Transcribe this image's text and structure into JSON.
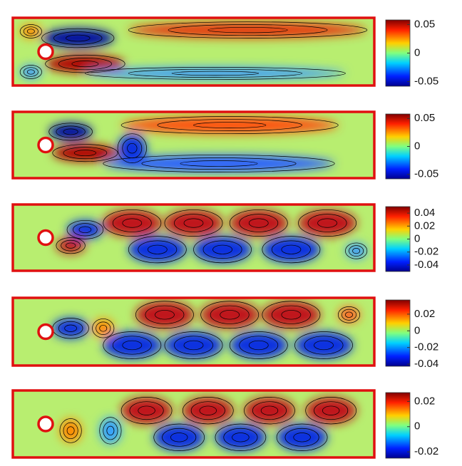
{
  "panels": [
    {
      "clim": [
        -0.058,
        0.058
      ],
      "ticks": [
        0.05,
        0,
        -0.05
      ]
    },
    {
      "clim": [
        -0.058,
        0.058
      ],
      "ticks": [
        0.05,
        0,
        -0.05
      ]
    },
    {
      "clim": [
        -0.05,
        0.05
      ],
      "ticks": [
        0.04,
        0.02,
        0,
        -0.02,
        -0.04
      ]
    },
    {
      "clim": [
        -0.0425,
        0.037
      ],
      "ticks": [
        0.02,
        0,
        -0.02,
        -0.04
      ]
    },
    {
      "clim": [
        -0.025,
        0.027
      ],
      "ticks": [
        0.02,
        0,
        -0.02
      ]
    }
  ]
}
